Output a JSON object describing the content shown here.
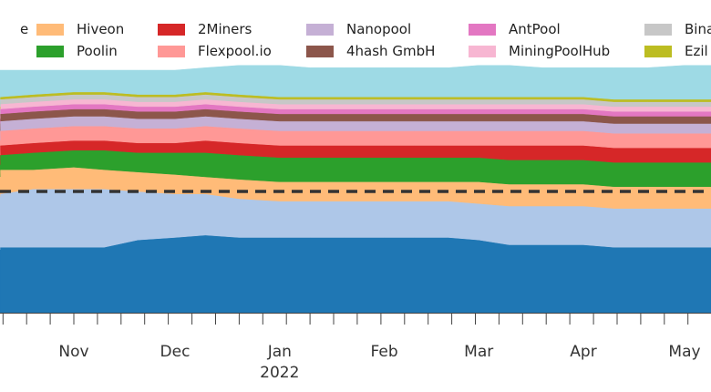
{
  "chart_data": {
    "type": "area",
    "stacked": true,
    "x": [
      "2021-10-01",
      "2021-10-10",
      "2021-10-20",
      "2021-11-01",
      "2021-11-10",
      "2021-11-20",
      "2021-12-01",
      "2021-12-10",
      "2021-12-20",
      "2022-01-01",
      "2022-01-10",
      "2022-01-20",
      "2022-02-01",
      "2022-02-10",
      "2022-02-20",
      "2022-03-01",
      "2022-03-10",
      "2022-03-20",
      "2022-04-01",
      "2022-04-10",
      "2022-04-20",
      "2022-05-01",
      "2022-05-10"
    ],
    "ylim": [
      0,
      100
    ],
    "reference_line": {
      "y": 50,
      "style": "dashed",
      "color": "#333333"
    },
    "x_ticks": [
      {
        "date": "2021-11-01",
        "label": "Nov"
      },
      {
        "date": "2021-12-01",
        "label": "Dec"
      },
      {
        "date": "2022-01-01",
        "label": "Jan"
      },
      {
        "date": "2022-02-01",
        "label": "Feb"
      },
      {
        "date": "2022-03-01",
        "label": "Mar"
      },
      {
        "date": "2022-04-01",
        "label": "Apr"
      },
      {
        "date": "2022-05-01",
        "label": "May"
      }
    ],
    "year_label": {
      "date": "2022-01-01",
      "label": "2022"
    },
    "minor_tick_days": 7,
    "series": [
      {
        "color": "#1f77b4",
        "values": [
          26,
          27,
          27,
          27,
          27,
          30,
          31,
          32,
          31,
          31,
          31,
          31,
          31,
          31,
          31,
          30,
          28,
          28,
          28,
          27,
          27,
          27,
          27
        ]
      },
      {
        "color": "#aec7e8",
        "values": [
          22,
          22,
          24,
          24,
          24,
          20,
          18,
          17,
          16,
          15,
          15,
          15,
          15,
          15,
          15,
          15,
          16,
          16,
          16,
          16,
          16,
          16,
          16
        ]
      },
      {
        "name": "Hiveon",
        "color": "#ffbb78",
        "values": [
          8,
          10,
          8,
          9,
          8,
          8,
          8,
          7,
          8,
          8,
          8,
          8,
          8,
          8,
          8,
          9,
          9,
          9,
          9,
          9,
          9,
          9,
          9
        ]
      },
      {
        "name": "Poolin",
        "color": "#2ca02c",
        "values": [
          5,
          6,
          7,
          7,
          8,
          8,
          9,
          10,
          10,
          10,
          10,
          10,
          10,
          10,
          10,
          10,
          10,
          10,
          10,
          10,
          10,
          10,
          10
        ]
      },
      {
        "name": "2Miners",
        "color": "#d62728",
        "values": [
          4,
          4,
          4,
          4,
          4,
          4,
          4,
          5,
          5,
          5,
          5,
          5,
          5,
          5,
          5,
          5,
          6,
          6,
          6,
          6,
          6,
          6,
          6
        ]
      },
      {
        "name": "Flexpool.io",
        "color": "#ff9896",
        "values": [
          6,
          6,
          6,
          6,
          6,
          6,
          6,
          6,
          6,
          6,
          6,
          6,
          6,
          6,
          6,
          6,
          6,
          6,
          6,
          6,
          6,
          6,
          6
        ]
      },
      {
        "name": "Nanopool",
        "color": "#c5b0d5",
        "values": [
          4,
          4,
          4,
          4,
          4,
          4,
          4,
          4,
          4,
          4,
          4,
          4,
          4,
          4,
          4,
          4,
          4,
          4,
          4,
          4,
          4,
          4,
          4
        ]
      },
      {
        "name": "4hash GmbH",
        "color": "#8c564b",
        "values": [
          3,
          3,
          3,
          3,
          3,
          3,
          3,
          3,
          3,
          3,
          3,
          3,
          3,
          3,
          3,
          3,
          3,
          3,
          3,
          3,
          3,
          3,
          3
        ]
      },
      {
        "name": "AntPool",
        "color": "#e377c2",
        "values": [
          2,
          2,
          2,
          2,
          2,
          2,
          2,
          2,
          2,
          2,
          2,
          2,
          2,
          2,
          2,
          2,
          2,
          2,
          2,
          2,
          2,
          2,
          2
        ]
      },
      {
        "name": "MiningPoolHub",
        "color": "#f7b6d2",
        "values": [
          2,
          2,
          2,
          2,
          2,
          2,
          2,
          2,
          2,
          2,
          2,
          2,
          2,
          2,
          2,
          2,
          2,
          2,
          2,
          2,
          2,
          2,
          2
        ]
      },
      {
        "name": "Bina",
        "color": "#c7c7c7",
        "values": [
          2,
          2,
          2,
          2,
          2,
          2,
          2,
          2,
          2,
          2,
          2,
          2,
          2,
          2,
          2,
          2,
          2,
          2,
          2,
          2,
          2,
          2,
          2
        ]
      },
      {
        "name": "Ezil",
        "color": "#bcbd22",
        "values": [
          1,
          1,
          1,
          1,
          1,
          1,
          1,
          1,
          1,
          1,
          1,
          1,
          1,
          1,
          1,
          1,
          1,
          1,
          1,
          1,
          1,
          1,
          1
        ]
      },
      {
        "color": "#9edae5",
        "values": [
          15,
          11,
          10,
          9,
          9,
          10,
          10,
          10,
          12,
          13,
          12,
          12,
          12,
          12,
          12,
          13,
          13,
          12,
          12,
          13,
          13,
          14,
          14
        ]
      }
    ]
  },
  "legend": {
    "items": [
      {
        "label": "e",
        "color": "#ffffff"
      },
      {
        "label": "Hiveon",
        "color": "#ffbb78"
      },
      {
        "label": "Poolin",
        "color": "#2ca02c"
      },
      {
        "label": "2Miners",
        "color": "#d62728"
      },
      {
        "label": "Flexpool.io",
        "color": "#ff9896"
      },
      {
        "label": "Nanopool",
        "color": "#c5b0d5"
      },
      {
        "label": "4hash GmbH",
        "color": "#8c564b"
      },
      {
        "label": "AntPool",
        "color": "#e377c2"
      },
      {
        "label": "MiningPoolHub",
        "color": "#f7b6d2"
      },
      {
        "label": "Bina",
        "color": "#c7c7c7"
      },
      {
        "label": "Ezil",
        "color": "#bcbd22"
      }
    ]
  }
}
